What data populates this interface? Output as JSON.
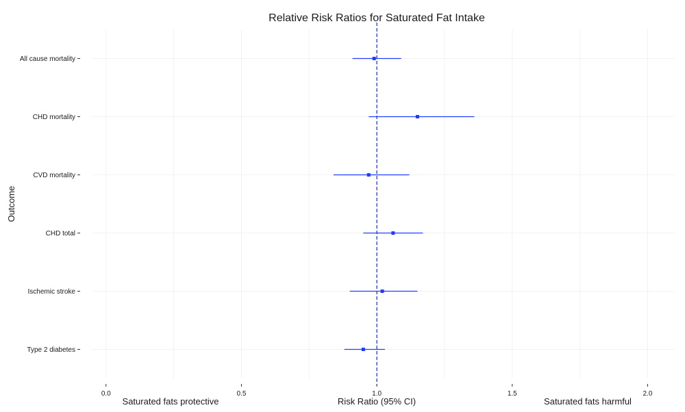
{
  "chart_data": {
    "type": "scatter",
    "subtype": "forest-plot",
    "title": "Relative Risk Ratios for Saturated Fat Intake",
    "xlabel": "Risk Ratio (95% CI)",
    "ylabel": "Outcome",
    "xlim": [
      -0.05,
      2.1
    ],
    "xticks": [
      0.0,
      0.5,
      1.0,
      1.5,
      2.0
    ],
    "xtick_labels": [
      "0.0",
      "0.5",
      "1.0",
      "1.5",
      "2.0"
    ],
    "reference_line": 1.0,
    "grid": true,
    "color": "#1f3cff",
    "annotations": {
      "left": "Saturated fats protective",
      "right": "Saturated fats harmful"
    },
    "categories": [
      "All cause mortality",
      "CHD mortality",
      "CVD mortality",
      "CHD total",
      "Ischemic stroke",
      "Type 2 diabetes"
    ],
    "estimates": [
      0.99,
      1.15,
      0.97,
      1.06,
      1.02,
      0.95
    ],
    "ci_low": [
      0.91,
      0.97,
      0.84,
      0.95,
      0.9,
      0.88
    ],
    "ci_high": [
      1.09,
      1.36,
      1.12,
      1.17,
      1.15,
      1.03
    ]
  }
}
